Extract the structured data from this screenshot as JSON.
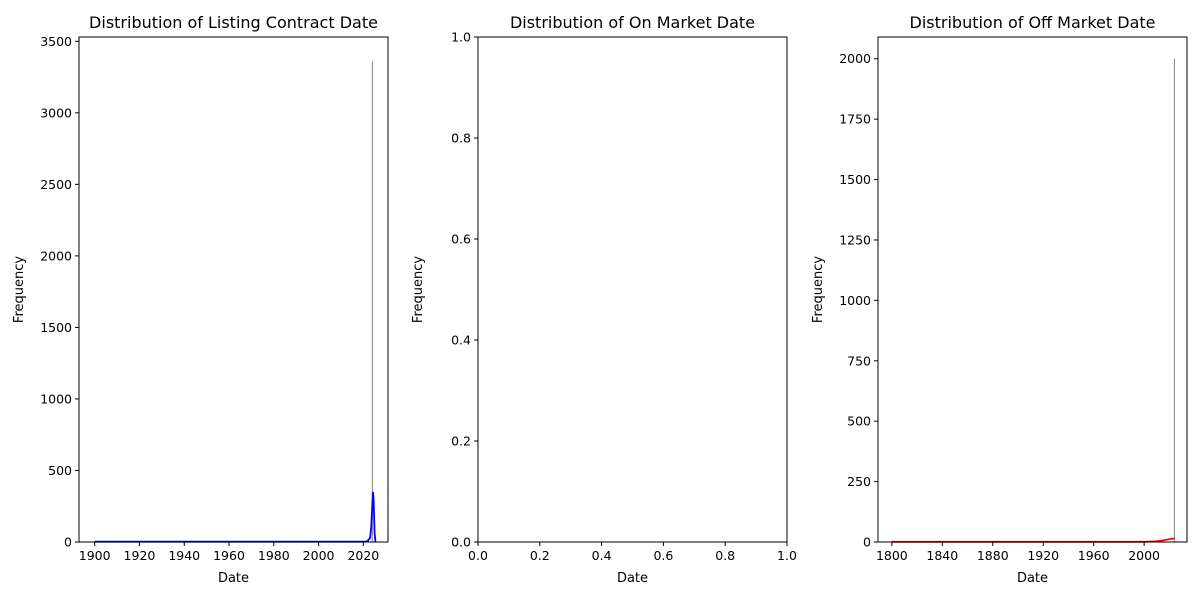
{
  "chart_data": [
    {
      "type": "bar",
      "title": "Distribution of Listing Contract Date",
      "xlabel": "Date",
      "ylabel": "Frequency",
      "xlim": [
        1893,
        2031
      ],
      "ylim": [
        0,
        3530
      ],
      "xticks": [
        1900,
        1920,
        1940,
        1960,
        1980,
        2000,
        2020
      ],
      "yticks": [
        0,
        500,
        1000,
        1500,
        2000,
        2500,
        3000,
        3500
      ],
      "bar_color": "#808080",
      "bars": [
        {
          "x": 2024,
          "value": 3360
        }
      ],
      "kde_color": "#0000ff",
      "kde": {
        "x": [
          1900,
          2019,
          2021,
          2022,
          2023,
          2023.5,
          2024,
          2024.3,
          2024.6,
          2025,
          2025.4
        ],
        "y": [
          2,
          2,
          3,
          8,
          30,
          100,
          260,
          350,
          280,
          60,
          0
        ]
      }
    },
    {
      "type": "bar",
      "title": "Distribution of On Market Date",
      "xlabel": "Date",
      "ylabel": "Frequency",
      "xlim": [
        0,
        1
      ],
      "ylim": [
        0,
        1
      ],
      "xticks": [
        "0.0",
        "0.2",
        "0.4",
        "0.6",
        "0.8",
        "1.0"
      ],
      "yticks": [
        "0.0",
        "0.2",
        "0.4",
        "0.6",
        "0.8",
        "1.0"
      ],
      "bars": [],
      "kde": null
    },
    {
      "type": "bar",
      "title": "Distribution of Off Market Date",
      "xlabel": "Date",
      "ylabel": "Frequency",
      "xlim": [
        1789,
        2034
      ],
      "ylim": [
        0,
        2090
      ],
      "xticks": [
        1800,
        1840,
        1880,
        1920,
        1960,
        2000
      ],
      "yticks": [
        0,
        250,
        500,
        750,
        1000,
        1250,
        1500,
        1750,
        2000
      ],
      "bar_color": "#808080",
      "bars": [
        {
          "x": 2024,
          "value": 2000
        }
      ],
      "kde_color": "#ff0000",
      "kde": {
        "x": [
          1800,
          2000,
          2010,
          2016,
          2022,
          2024
        ],
        "y": [
          1,
          1,
          3,
          8,
          14,
          15
        ]
      }
    }
  ]
}
